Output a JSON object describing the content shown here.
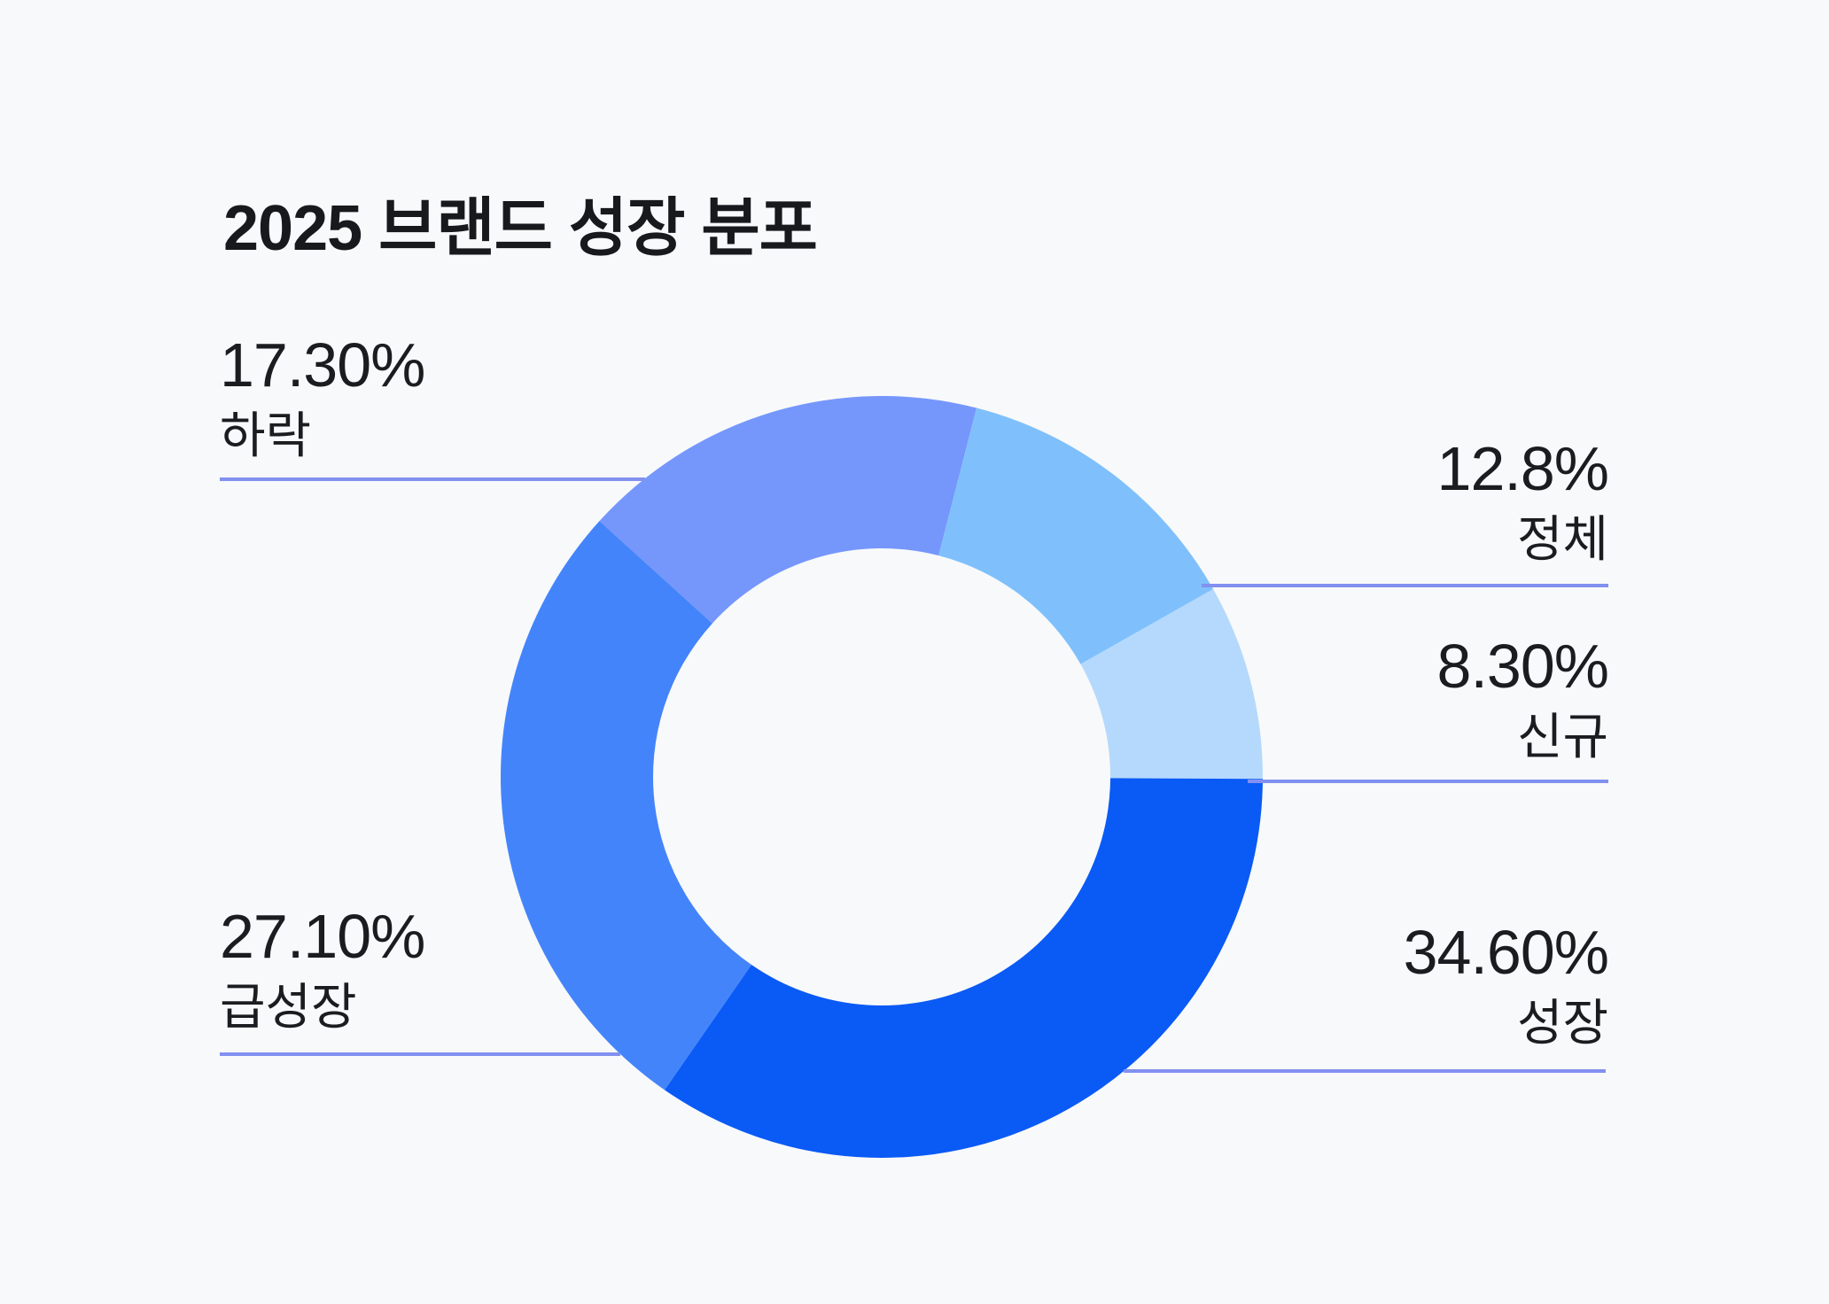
{
  "chart_data": {
    "type": "pie",
    "subtype": "donut",
    "title": "2025 브랜드 성장 분포",
    "inner_radius_ratio": 0.6,
    "start_angle_deg": -47.8,
    "clockwise": true,
    "background_color": "#f8f9fa",
    "leader_line_color": "#8290f0",
    "text_color": "#1a1c1f",
    "slices": [
      {
        "key": "decline",
        "label": "하락",
        "value_label": "17.30%",
        "pct": 17.3,
        "color": "#7597fc",
        "label_side": "left"
      },
      {
        "key": "stagnant",
        "label": "정체",
        "value_label": "12.8%",
        "pct": 12.8,
        "color": "#7fc0fc",
        "label_side": "right"
      },
      {
        "key": "new",
        "label": "신규",
        "value_label": "8.30%",
        "pct": 8.3,
        "color": "#b5d9fc",
        "label_side": "right"
      },
      {
        "key": "growth",
        "label": "성장",
        "value_label": "34.60%",
        "pct": 34.6,
        "color": "#0a5af5",
        "label_side": "right"
      },
      {
        "key": "rapid_growth",
        "label": "급성장",
        "value_label": "27.10%",
        "pct": 27.1,
        "color": "#4484fb",
        "label_side": "left"
      }
    ]
  }
}
